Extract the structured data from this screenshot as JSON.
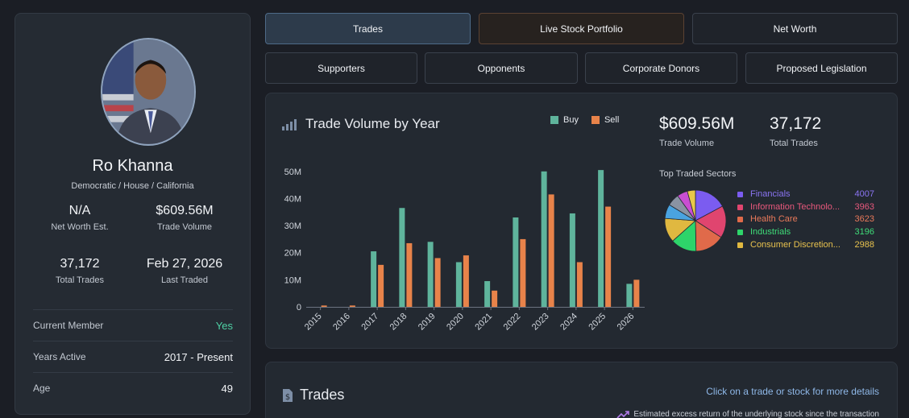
{
  "profile": {
    "name": "Ro Khanna",
    "party": "Democratic / House / California",
    "net_worth": "N/A",
    "net_worth_label": "Net Worth Est.",
    "trade_volume": "$609.56M",
    "trade_volume_label": "Trade Volume",
    "total_trades": "37,172",
    "total_trades_label": "Total Trades",
    "last_traded": "Feb 27, 2026",
    "last_traded_label": "Last Traded",
    "info": [
      {
        "key": "Current Member",
        "value": "Yes"
      },
      {
        "key": "Years Active",
        "value": "2017 - Present"
      },
      {
        "key": "Age",
        "value": "49"
      }
    ]
  },
  "nav": {
    "row1": [
      "Trades",
      "Live Stock Portfolio",
      "Net Worth"
    ],
    "row2": [
      "Supporters",
      "Opponents",
      "Corporate Donors",
      "Proposed Legislation"
    ]
  },
  "chart_card": {
    "kpi_volume": "$609.56M",
    "kpi_volume_label": "Trade Volume",
    "kpi_trades": "37,172",
    "kpi_trades_label": "Total Trades",
    "sectors_title": "Top Traded Sectors",
    "sectors": [
      {
        "name": "Financials",
        "count": 4007,
        "color": "#7b5cf0"
      },
      {
        "name": "Information Technolo...",
        "count": 3963,
        "color": "#e0456f"
      },
      {
        "name": "Health Care",
        "count": 3623,
        "color": "#e06a4a"
      },
      {
        "name": "Industrials",
        "count": 3196,
        "color": "#2ed46a"
      },
      {
        "name": "Consumer Discretion...",
        "count": 2988,
        "color": "#e0b840"
      }
    ],
    "pie_other_colors": [
      "#4aa3e0",
      "#8a93a3",
      "#c94fd1",
      "#e8c84a"
    ]
  },
  "chart_data": {
    "type": "bar",
    "title": "Trade Volume by Year",
    "categories": [
      "2015",
      "2016",
      "2017",
      "2018",
      "2019",
      "2020",
      "2021",
      "2022",
      "2023",
      "2024",
      "2025",
      "2026"
    ],
    "series": [
      {
        "name": "Buy",
        "color": "#5fb49c",
        "values": [
          0,
          0,
          20.5,
          36.5,
          24,
          16.5,
          9.5,
          33,
          50,
          34.5,
          50.5,
          8.5
        ]
      },
      {
        "name": "Sell",
        "color": "#e8834a",
        "values": [
          0.5,
          0.5,
          15.5,
          23.5,
          18,
          19,
          6,
          25,
          41.5,
          16.5,
          37,
          10
        ]
      }
    ],
    "ylim": [
      0,
      55
    ],
    "yticks": [
      0,
      10,
      20,
      30,
      40,
      50
    ],
    "ytick_labels": [
      "0",
      "10M",
      "20M",
      "30M",
      "40M",
      "50M"
    ],
    "xlabel": "",
    "ylabel": ""
  },
  "trades": {
    "title": "Trades",
    "link": "Click on a trade or stock for more details",
    "note": "Estimated excess return of the underlying stock since the transaction"
  }
}
